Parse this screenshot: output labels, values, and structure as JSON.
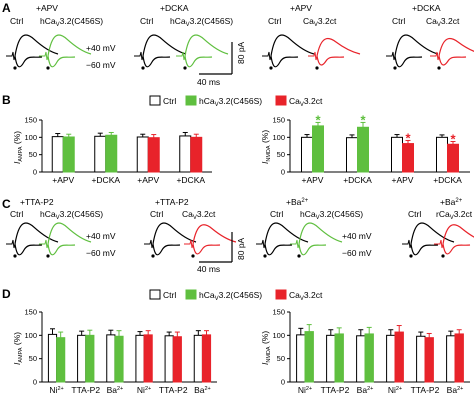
{
  "panels": [
    {
      "letter": "A"
    },
    {
      "letter": "B"
    },
    {
      "letter": "C"
    },
    {
      "letter": "D"
    }
  ],
  "labels": {
    "ctrl": "Ctrl",
    "hcav": "hCa",
    "hcav_sub": "V",
    "hcav_rest": "3.2(C456S)",
    "cav": "Ca",
    "cav_sub": "V",
    "cav_rest": "3.2ct",
    "rcav": "rCa",
    "plus40": "+40 mV",
    "minus60": "−60 mV",
    "scale_pa": "80 pA",
    "scale_ms": "40 ms"
  },
  "panel_a": {
    "cond_left": "+APV",
    "cond_mid": "+DCKA",
    "cond_right1": "+APV",
    "cond_right2": "+DCKA"
  },
  "panel_c": {
    "cond_left": "+TTA-P2",
    "cond_mid": "+TTA-P2",
    "cond_right1": "+Ba",
    "cond_right1_sup": "2+",
    "cond_right2": "+Ba",
    "cond_right2_sup": "2+"
  },
  "legend": [
    {
      "label_main": "Ctrl",
      "color": "#ffffff"
    },
    {
      "label_main": "hCa",
      "label_sub": "V",
      "label_rest": "3.2(C456S)",
      "color": "#5fbf3f"
    },
    {
      "label_main": "Ca",
      "label_sub": "V",
      "label_rest": "3.2ct",
      "color": "#e8232a"
    }
  ],
  "colors": {
    "ctrl": "#ffffff",
    "green": "#5fbf3f",
    "red": "#e8232a",
    "trace_black": "#000000"
  },
  "chart_data": [
    {
      "id": "B-left",
      "type": "bar",
      "ylabel_main": "I",
      "ylabel_sub": "AMPA",
      "ylabel_rest": " (%)",
      "ylim": [
        0,
        150
      ],
      "yticks": [
        "0",
        "50",
        "100",
        "150"
      ],
      "categories": [
        "+APV",
        "+DCKA",
        "+APV",
        "+DCKA"
      ],
      "groups": [
        {
          "bars": [
            {
              "series": "Ctrl",
              "value": 102,
              "err": 9
            },
            {
              "series": "hCaV3.2(C456S)",
              "value": 101,
              "err": 8
            }
          ]
        },
        {
          "bars": [
            {
              "series": "Ctrl",
              "value": 103,
              "err": 9
            },
            {
              "series": "hCaV3.2(C456S)",
              "value": 106,
              "err": 8
            }
          ]
        },
        {
          "bars": [
            {
              "series": "Ctrl",
              "value": 101,
              "err": 8
            },
            {
              "series": "CaV3.2ct",
              "value": 99,
              "err": 9
            }
          ]
        },
        {
          "bars": [
            {
              "series": "Ctrl",
              "value": 104,
              "err": 10
            },
            {
              "series": "CaV3.2ct",
              "value": 100,
              "err": 9
            }
          ]
        }
      ]
    },
    {
      "id": "B-right",
      "type": "bar",
      "ylabel_main": "I",
      "ylabel_sub": "NMDA",
      "ylabel_rest": " (%)",
      "ylim": [
        0,
        150
      ],
      "yticks": [
        "0",
        "50",
        "100",
        "150"
      ],
      "categories": [
        "+APV",
        "+DCKA",
        "+APV",
        "+DCKA"
      ],
      "groups": [
        {
          "bars": [
            {
              "series": "Ctrl",
              "value": 100,
              "err": 8
            },
            {
              "series": "hCaV3.2(C456S)",
              "value": 133,
              "err": 10,
              "star": "*"
            }
          ]
        },
        {
          "bars": [
            {
              "series": "Ctrl",
              "value": 99,
              "err": 8
            },
            {
              "series": "hCaV3.2(C456S)",
              "value": 129,
              "err": 14,
              "star": "*"
            }
          ]
        },
        {
          "bars": [
            {
              "series": "Ctrl",
              "value": 100,
              "err": 8
            },
            {
              "series": "CaV3.2ct",
              "value": 82,
              "err": 9,
              "star": "*"
            }
          ]
        },
        {
          "bars": [
            {
              "series": "Ctrl",
              "value": 100,
              "err": 7
            },
            {
              "series": "CaV3.2ct",
              "value": 80,
              "err": 8,
              "star": "*"
            }
          ]
        }
      ]
    },
    {
      "id": "D-left",
      "type": "bar",
      "ylabel_main": "I",
      "ylabel_sub": "AMPA",
      "ylabel_rest": " (%)",
      "ylim": [
        0,
        150
      ],
      "yticks": [
        "0",
        "50",
        "100",
        "150"
      ],
      "categories": [
        "Ni",
        "TTA-P2",
        "Ba",
        "Ni",
        "TTA-P2",
        "Ba"
      ],
      "category_sup": [
        "2+",
        "",
        "2+",
        "2+",
        "",
        "2+"
      ],
      "groups": [
        {
          "bars": [
            {
              "series": "Ctrl",
              "value": 102,
              "err": 12
            },
            {
              "series": "hCaV3.2(C456S)",
              "value": 95,
              "err": 12
            }
          ]
        },
        {
          "bars": [
            {
              "series": "Ctrl",
              "value": 100,
              "err": 9
            },
            {
              "series": "hCaV3.2(C456S)",
              "value": 100,
              "err": 11
            }
          ]
        },
        {
          "bars": [
            {
              "series": "Ctrl",
              "value": 101,
              "err": 10
            },
            {
              "series": "hCaV3.2(C456S)",
              "value": 98,
              "err": 12
            }
          ]
        },
        {
          "bars": [
            {
              "series": "Ctrl",
              "value": 100,
              "err": 8
            },
            {
              "series": "CaV3.2ct",
              "value": 101,
              "err": 9
            }
          ]
        },
        {
          "bars": [
            {
              "series": "Ctrl",
              "value": 99,
              "err": 8
            },
            {
              "series": "CaV3.2ct",
              "value": 97,
              "err": 10
            }
          ]
        },
        {
          "bars": [
            {
              "series": "Ctrl",
              "value": 100,
              "err": 10
            },
            {
              "series": "CaV3.2ct",
              "value": 101,
              "err": 9
            }
          ]
        }
      ]
    },
    {
      "id": "D-right",
      "type": "bar",
      "ylabel_main": "I",
      "ylabel_sub": "NMDA",
      "ylabel_rest": " (%)",
      "ylim": [
        0,
        150
      ],
      "yticks": [
        "0",
        "50",
        "100",
        "150"
      ],
      "categories": [
        "Ni",
        "TTA-P2",
        "Ba",
        "Ni",
        "TTA-P2",
        "Ba"
      ],
      "category_sup": [
        "2+",
        "",
        "2+",
        "2+",
        "",
        "2+"
      ],
      "groups": [
        {
          "bars": [
            {
              "series": "Ctrl",
              "value": 101,
              "err": 14
            },
            {
              "series": "hCaV3.2(C456S)",
              "value": 108,
              "err": 15
            }
          ]
        },
        {
          "bars": [
            {
              "series": "Ctrl",
              "value": 100,
              "err": 12
            },
            {
              "series": "hCaV3.2(C456S)",
              "value": 103,
              "err": 13
            }
          ]
        },
        {
          "bars": [
            {
              "series": "Ctrl",
              "value": 99,
              "err": 13
            },
            {
              "series": "hCaV3.2(C456S)",
              "value": 103,
              "err": 14
            }
          ]
        },
        {
          "bars": [
            {
              "series": "Ctrl",
              "value": 100,
              "err": 12
            },
            {
              "series": "CaV3.2ct",
              "value": 107,
              "err": 14
            }
          ]
        },
        {
          "bars": [
            {
              "series": "Ctrl",
              "value": 98,
              "err": 9
            },
            {
              "series": "CaV3.2ct",
              "value": 95,
              "err": 9
            }
          ]
        },
        {
          "bars": [
            {
              "series": "Ctrl",
              "value": 99,
              "err": 10
            },
            {
              "series": "CaV3.2ct",
              "value": 103,
              "err": 9
            }
          ]
        }
      ]
    }
  ]
}
